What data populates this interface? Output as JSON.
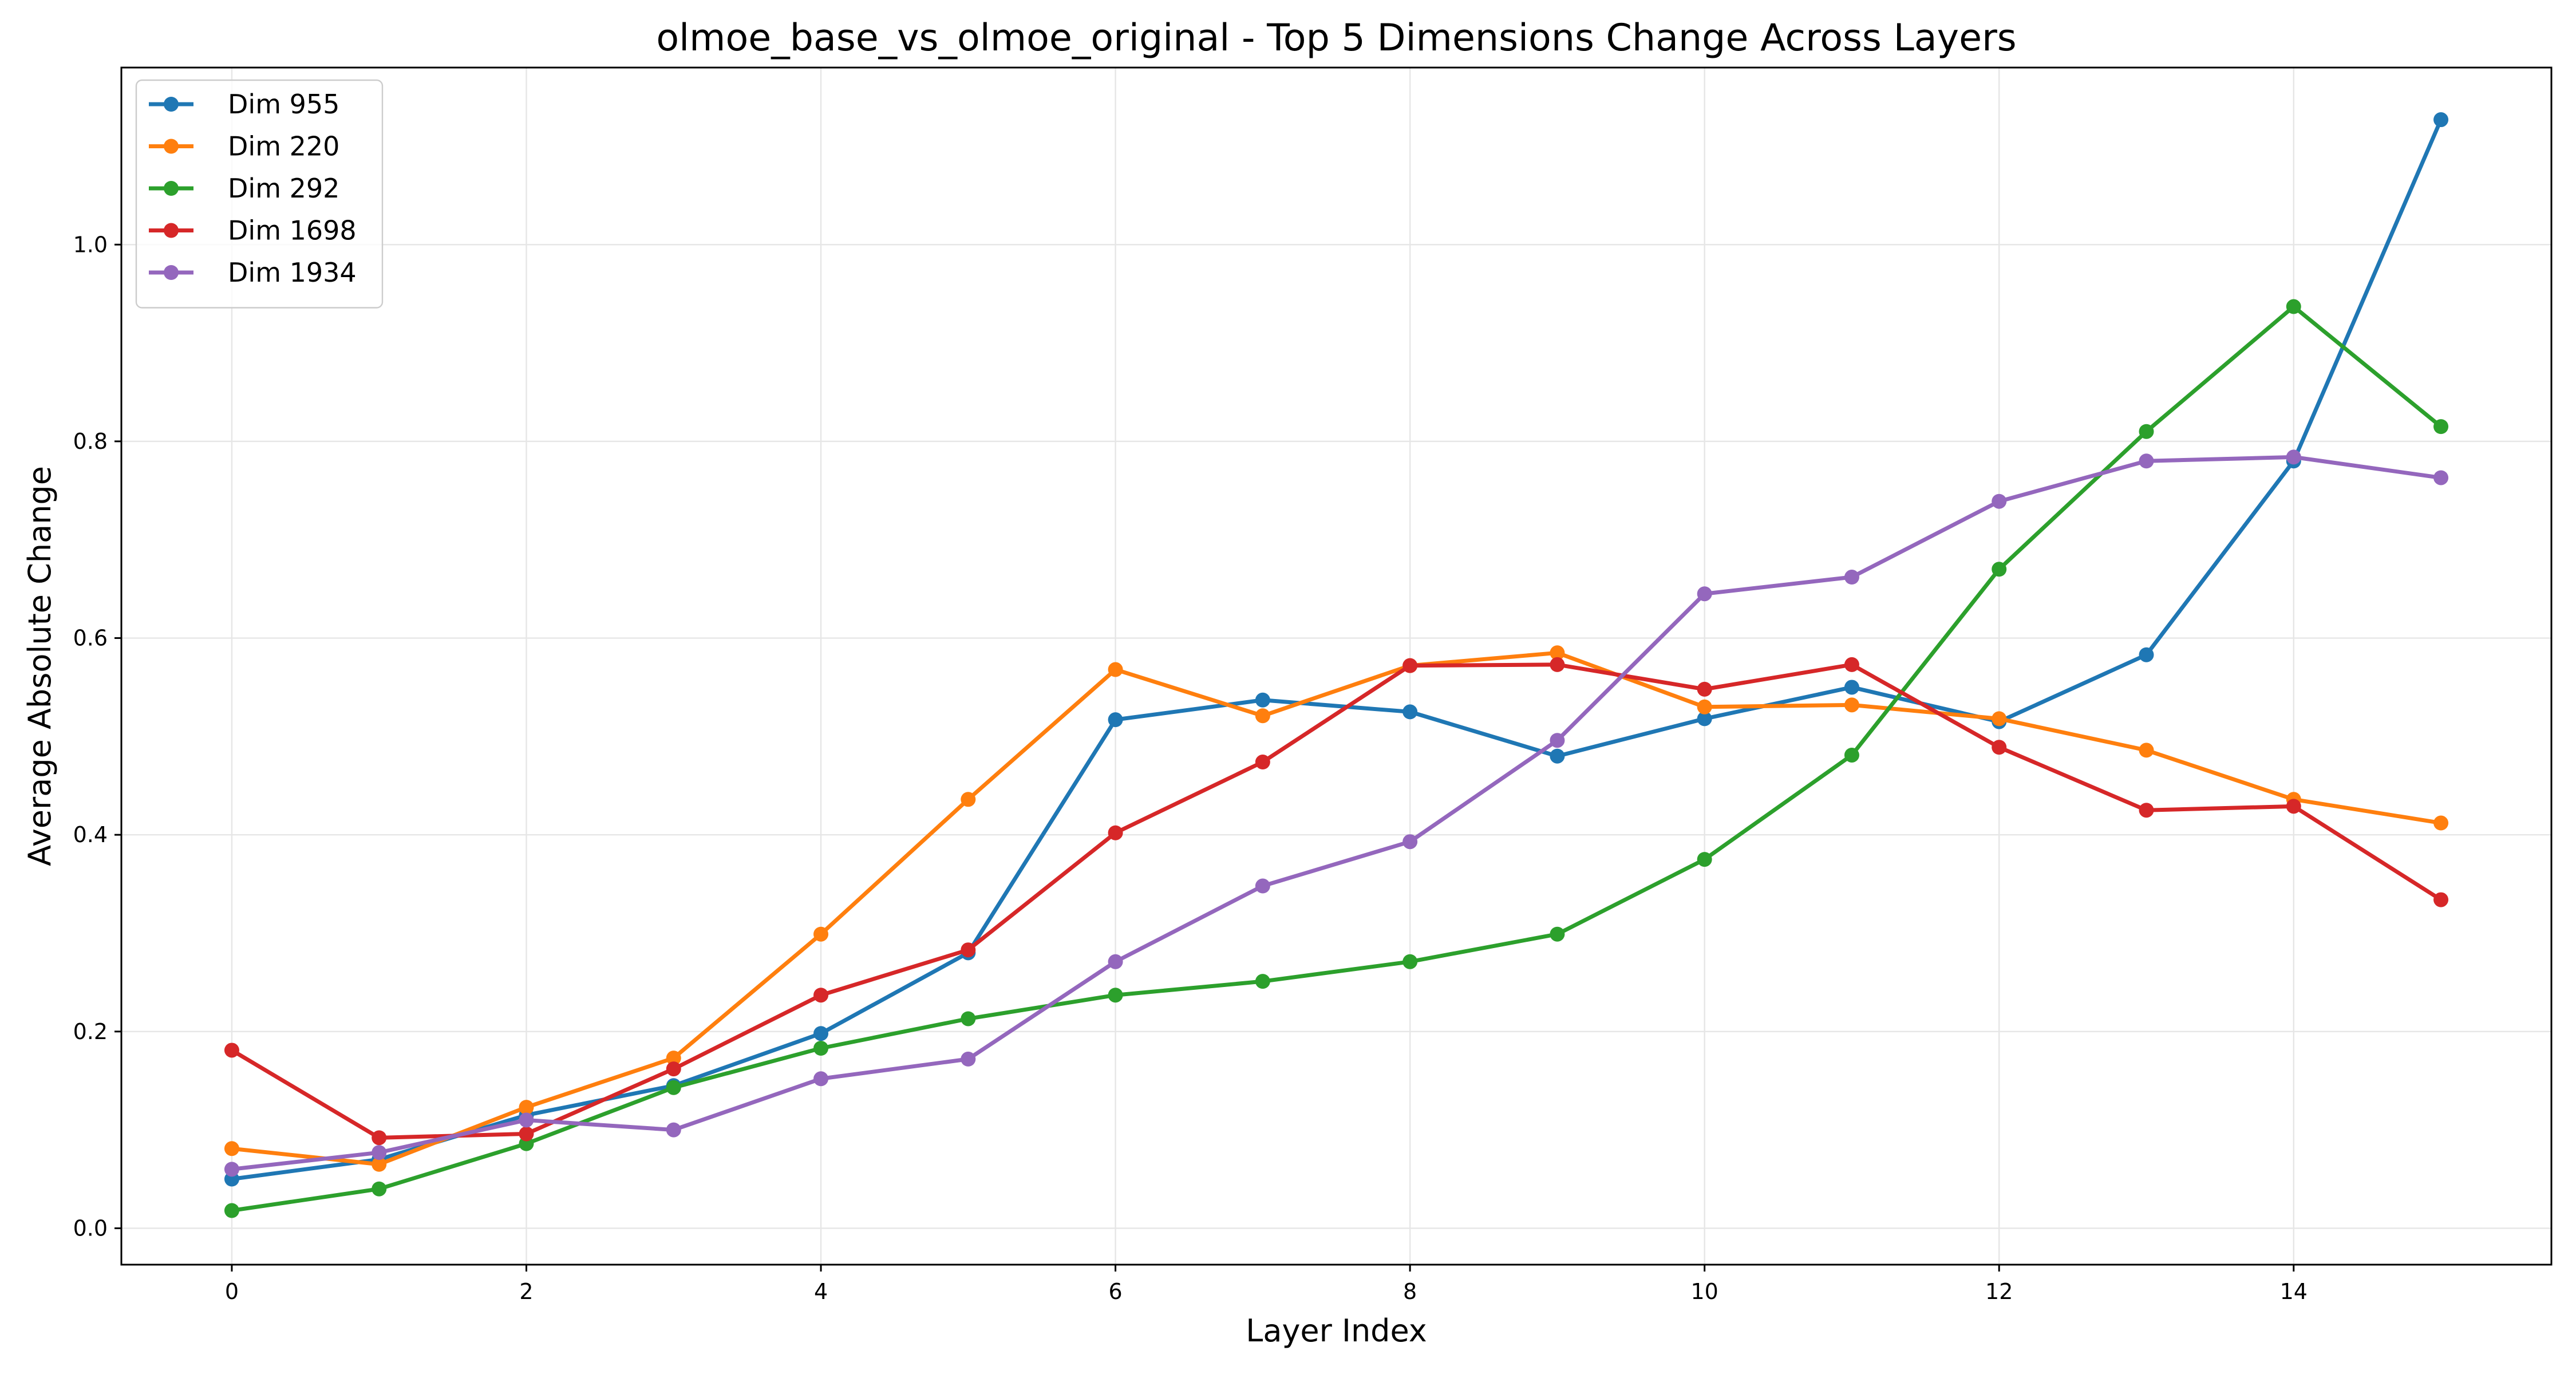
{
  "chart_data": {
    "type": "line",
    "title": "olmoe_base_vs_olmoe_original - Top 5 Dimensions Change Across Layers",
    "xlabel": "Layer Index",
    "ylabel": "Average Absolute Change",
    "xlim": [
      -0.75,
      15.75
    ],
    "ylim": [
      -0.037,
      1.18
    ],
    "xticks": [
      0,
      2,
      4,
      6,
      8,
      10,
      12,
      14
    ],
    "xtick_labels": [
      "0",
      "2",
      "4",
      "6",
      "8",
      "10",
      "12",
      "14"
    ],
    "yticks": [
      0.0,
      0.2,
      0.4,
      0.6,
      0.8,
      1.0
    ],
    "ytick_labels": [
      "0.0",
      "0.2",
      "0.4",
      "0.6",
      "0.8",
      "1.0"
    ],
    "grid": true,
    "legend_position": "top-left",
    "x": [
      0,
      1,
      2,
      3,
      4,
      5,
      6,
      7,
      8,
      9,
      10,
      11,
      12,
      13,
      14,
      15
    ],
    "series": [
      {
        "name": "Dim 955",
        "color": "#1f77b4",
        "values": [
          0.05,
          0.07,
          0.115,
          0.145,
          0.198,
          0.28,
          0.517,
          0.537,
          0.525,
          0.48,
          0.518,
          0.55,
          0.515,
          0.583,
          0.78,
          1.127
        ]
      },
      {
        "name": "Dim 220",
        "color": "#ff7f0e",
        "values": [
          0.081,
          0.065,
          0.123,
          0.173,
          0.299,
          0.436,
          0.568,
          0.521,
          0.572,
          0.585,
          0.53,
          0.532,
          0.518,
          0.486,
          0.436,
          0.412
        ]
      },
      {
        "name": "Dim 292",
        "color": "#2ca02c",
        "values": [
          0.018,
          0.04,
          0.086,
          0.143,
          0.183,
          0.213,
          0.237,
          0.251,
          0.271,
          0.299,
          0.375,
          0.481,
          0.67,
          0.81,
          0.937,
          0.815
        ]
      },
      {
        "name": "Dim 1698",
        "color": "#d62728",
        "values": [
          0.181,
          0.092,
          0.096,
          0.162,
          0.237,
          0.283,
          0.402,
          0.474,
          0.572,
          0.573,
          0.548,
          0.573,
          0.489,
          0.425,
          0.429,
          0.334
        ]
      },
      {
        "name": "Dim 1934",
        "color": "#9467bd",
        "values": [
          0.06,
          0.077,
          0.11,
          0.1,
          0.152,
          0.172,
          0.271,
          0.348,
          0.393,
          0.496,
          0.645,
          0.662,
          0.739,
          0.78,
          0.784,
          0.763
        ]
      }
    ]
  }
}
